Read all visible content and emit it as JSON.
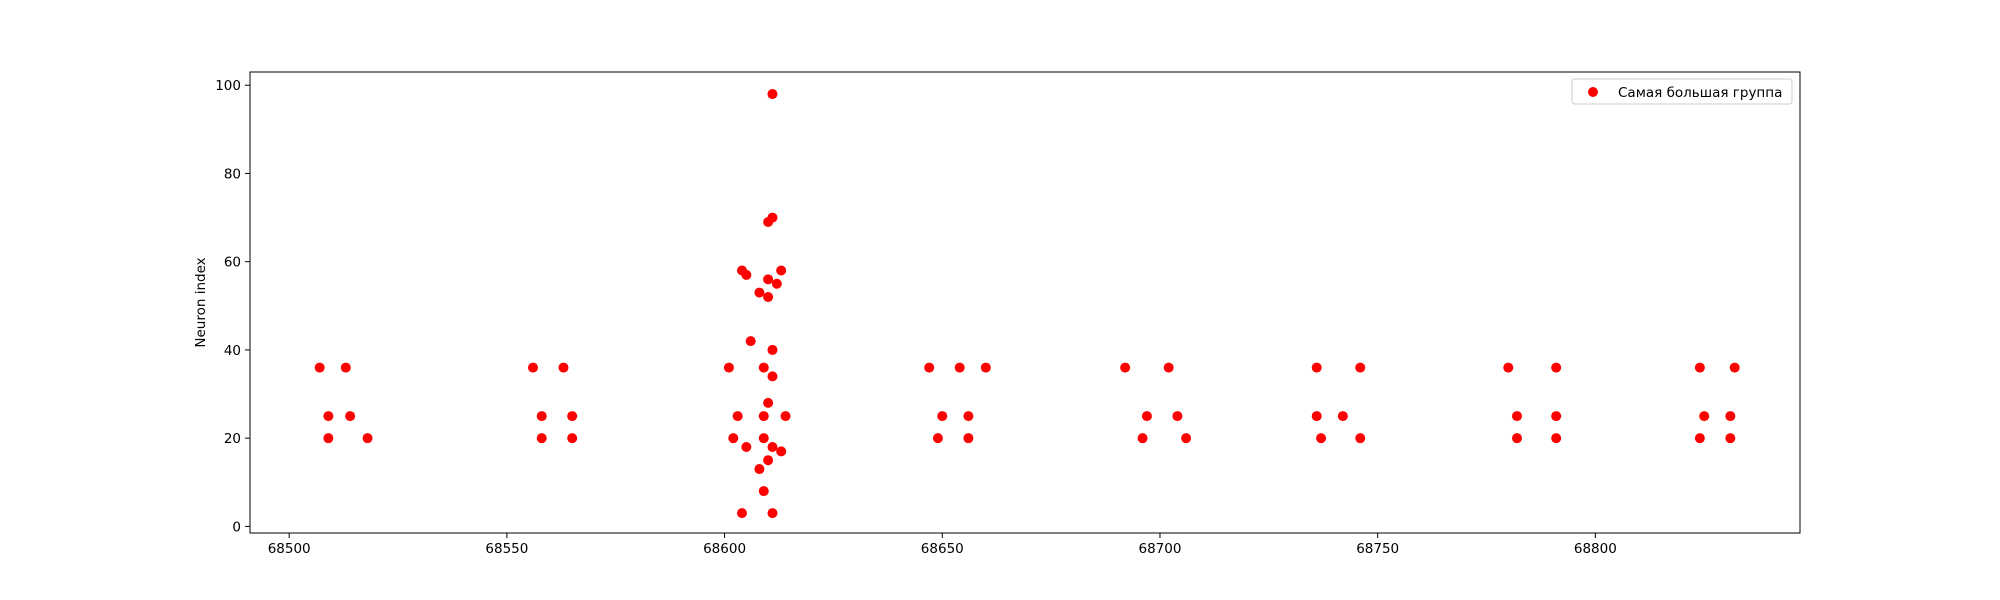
{
  "chart_data": {
    "type": "scatter",
    "title": "",
    "xlabel": "",
    "ylabel": "Neuron index",
    "xlim": [
      68491,
      68847
    ],
    "ylim": [
      -1.5,
      103
    ],
    "xticks": [
      68500,
      68550,
      68600,
      68650,
      68700,
      68750,
      68800
    ],
    "yticks": [
      0,
      20,
      40,
      60,
      80,
      100
    ],
    "grid": false,
    "legend_position": "top-right",
    "series": [
      {
        "name": "Самая большая группа",
        "color": "#ff0000",
        "points": [
          [
            68507,
            36
          ],
          [
            68509,
            25
          ],
          [
            68509,
            20
          ],
          [
            68513,
            36
          ],
          [
            68514,
            25
          ],
          [
            68518,
            20
          ],
          [
            68556,
            36
          ],
          [
            68558,
            20
          ],
          [
            68558,
            25
          ],
          [
            68563,
            36
          ],
          [
            68565,
            25
          ],
          [
            68565,
            20
          ],
          [
            68601,
            36
          ],
          [
            68602,
            20
          ],
          [
            68603,
            25
          ],
          [
            68604,
            3
          ],
          [
            68604,
            58
          ],
          [
            68605,
            18
          ],
          [
            68605,
            57
          ],
          [
            68606,
            42
          ],
          [
            68608,
            53
          ],
          [
            68608,
            13
          ],
          [
            68609,
            8
          ],
          [
            68609,
            36
          ],
          [
            68609,
            25
          ],
          [
            68609,
            20
          ],
          [
            68610,
            69
          ],
          [
            68610,
            52
          ],
          [
            68610,
            56
          ],
          [
            68610,
            28
          ],
          [
            68610,
            15
          ],
          [
            68611,
            98
          ],
          [
            68611,
            70
          ],
          [
            68611,
            40
          ],
          [
            68611,
            34
          ],
          [
            68611,
            18
          ],
          [
            68611,
            3
          ],
          [
            68612,
            55
          ],
          [
            68613,
            17
          ],
          [
            68613,
            58
          ],
          [
            68614,
            25
          ],
          [
            68647,
            36
          ],
          [
            68649,
            20
          ],
          [
            68650,
            25
          ],
          [
            68654,
            36
          ],
          [
            68656,
            25
          ],
          [
            68656,
            20
          ],
          [
            68660,
            36
          ],
          [
            68692,
            36
          ],
          [
            68696,
            20
          ],
          [
            68697,
            25
          ],
          [
            68702,
            36
          ],
          [
            68704,
            25
          ],
          [
            68706,
            20
          ],
          [
            68736,
            36
          ],
          [
            68736,
            25
          ],
          [
            68737,
            20
          ],
          [
            68742,
            25
          ],
          [
            68746,
            36
          ],
          [
            68746,
            20
          ],
          [
            68780,
            36
          ],
          [
            68782,
            20
          ],
          [
            68782,
            25
          ],
          [
            68791,
            36
          ],
          [
            68791,
            25
          ],
          [
            68791,
            20
          ],
          [
            68824,
            36
          ],
          [
            68824,
            20
          ],
          [
            68825,
            25
          ],
          [
            68831,
            25
          ],
          [
            68831,
            20
          ],
          [
            68832,
            36
          ]
        ]
      }
    ]
  }
}
